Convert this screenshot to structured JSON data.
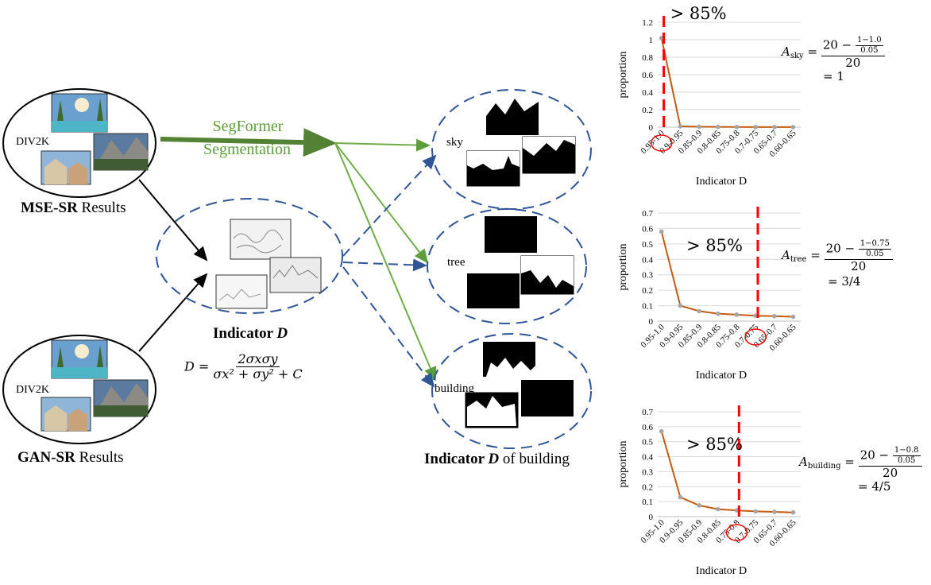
{
  "sources": {
    "mse": {
      "bold": "MSE-SR",
      "rest": " Results",
      "dataset": "DIV2K"
    },
    "gan": {
      "bold": "GAN-SR",
      "rest": " Results",
      "dataset": "DIV2K"
    }
  },
  "segmentation": {
    "line1": "SegFormer",
    "line2": "Segmentation"
  },
  "indicator": {
    "title_bold": "Indicator ",
    "title_italic": "D",
    "formula_lhs": "D =",
    "formula_num": "2σxσy",
    "formula_den": "σx² + σy² + C"
  },
  "classes": [
    {
      "label": "sky"
    },
    {
      "label": "tree"
    },
    {
      "label": "building"
    }
  ],
  "building_caption": {
    "bold": "Indicator ",
    "italic": "D",
    "rest": " of building"
  },
  "colors": {
    "segformer_green": "#5c9e3a",
    "dashed_blue": "#2f5596",
    "line_orange": "#c55a11",
    "marker_gray": "#a5a5a5",
    "threshold_red": "#ff0000"
  },
  "chart_data": [
    {
      "type": "line",
      "class": "sky",
      "categories": [
        "0.95-1.0",
        "0.9-0.95",
        "0.85-0.9",
        "0.8-0.85",
        "0.75-0.8",
        "0.7-0.75",
        "0.65-0.7",
        "0.60-0.65"
      ],
      "values": [
        1.02,
        0.01,
        0.005,
        0.003,
        0.002,
        0.001,
        0.001,
        0.001
      ],
      "ylim": [
        0,
        1.2
      ],
      "yticks": [
        "0",
        "0.2",
        "0.4",
        "0.6",
        "0.8",
        "1",
        "1.2"
      ],
      "ylabel": "proportion",
      "xlabel": "Indicator D",
      "threshold_category": 0,
      "threshold_text": "> 85%",
      "circled_category": 0,
      "score": {
        "symbol": "A",
        "sub": "sky",
        "num": "20 − ",
        "frac_num": "1−1.0",
        "frac_den": "0.05",
        "den": "20",
        "result": "= 1"
      }
    },
    {
      "type": "line",
      "class": "tree",
      "categories": [
        "0.95-1.0",
        "0.9-0.95",
        "0.85-0.9",
        "0.8-0.85",
        "0.75-0.8",
        "0.7-0.75",
        "0.65-0.7",
        "0.60-0.65"
      ],
      "values": [
        0.58,
        0.1,
        0.065,
        0.048,
        0.042,
        0.035,
        0.032,
        0.028
      ],
      "ylim": [
        0,
        0.7
      ],
      "yticks": [
        "0",
        "0.1",
        "0.2",
        "0.3",
        "0.4",
        "0.5",
        "0.6",
        "0.7"
      ],
      "ylabel": "proportion",
      "xlabel": "Indicator D",
      "threshold_category": 5,
      "threshold_text": "> 85%",
      "circled_category": 5,
      "score": {
        "symbol": "A",
        "sub": "tree",
        "num": "20 − ",
        "frac_num": "1−0.75",
        "frac_den": "0.05",
        "den": "20",
        "result": "= 3/4"
      }
    },
    {
      "type": "line",
      "class": "building",
      "categories": [
        "0.95-1.0",
        "0.9-0.95",
        "0.85-0.9",
        "0.8-0.85",
        "0.75-0.8",
        "0.7-0.75",
        "0.65-0.7",
        "0.60-0.65"
      ],
      "values": [
        0.57,
        0.13,
        0.075,
        0.05,
        0.042,
        0.035,
        0.032,
        0.028
      ],
      "ylim": [
        0,
        0.7
      ],
      "yticks": [
        "0",
        "0.1",
        "0.2",
        "0.3",
        "0.4",
        "0.5",
        "0.6",
        "0.7"
      ],
      "ylabel": "proportion",
      "xlabel": "Indicator D",
      "threshold_category": 4,
      "threshold_text": "> 85%",
      "circled_category": 4,
      "score": {
        "symbol": "A",
        "sub": "building",
        "num": "20 − ",
        "frac_num": "1−0.8",
        "frac_den": "0.05",
        "den": "20",
        "result": "= 4/5"
      }
    }
  ]
}
